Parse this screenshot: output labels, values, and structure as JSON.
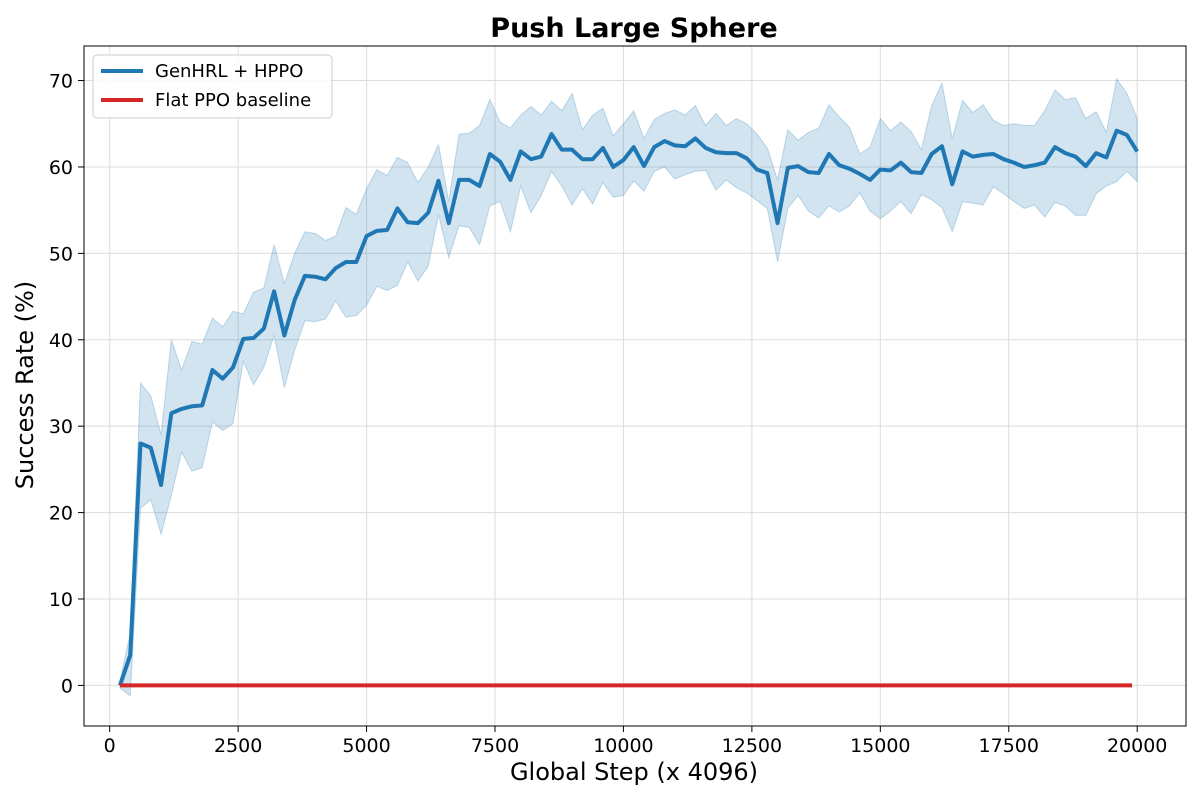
{
  "chart_data": {
    "type": "line",
    "title": "Push Large Sphere",
    "xlabel": "Global Step (x 4096)",
    "ylabel": "Success Rate (%)",
    "xlim": [
      -500,
      20950
    ],
    "ylim": [
      -4.7,
      74
    ],
    "x_ticks": [
      0,
      2500,
      5000,
      7500,
      10000,
      12500,
      15000,
      17500,
      20000
    ],
    "y_ticks": [
      0,
      10,
      20,
      30,
      40,
      50,
      60,
      70
    ],
    "grid": true,
    "legend": "top-left",
    "colors": {
      "series_main": "#1f77b4",
      "band": "#1f77b4",
      "baseline": "#d62728"
    },
    "series": [
      {
        "name": "GenHRL + HPPO",
        "color": "#1f77b4",
        "x": [
          200,
          400,
          600,
          800,
          1000,
          1200,
          1400,
          1600,
          1800,
          2000,
          2200,
          2400,
          2600,
          2800,
          3000,
          3200,
          3400,
          3600,
          3800,
          4000,
          4200,
          4400,
          4600,
          4800,
          5000,
          5200,
          5400,
          5600,
          5800,
          6000,
          6200,
          6400,
          6600,
          6800,
          7000,
          7200,
          7400,
          7600,
          7800,
          8000,
          8200,
          8400,
          8600,
          8800,
          9000,
          9200,
          9400,
          9600,
          9800,
          10000,
          10200,
          10400,
          10600,
          10800,
          11000,
          11200,
          11400,
          11600,
          11800,
          12000,
          12200,
          12400,
          12600,
          12800,
          13000,
          13200,
          13400,
          13600,
          13800,
          14000,
          14200,
          14400,
          14600,
          14800,
          15000,
          15200,
          15400,
          15600,
          15800,
          16000,
          16200,
          16400,
          16600,
          16800,
          17000,
          17200,
          17400,
          17600,
          17800,
          18000,
          18200,
          18400,
          18600,
          18800,
          19000,
          19200,
          19400,
          19600,
          19800,
          20000
        ],
        "y": [
          0,
          3.5,
          28,
          27.5,
          23.2,
          31.5,
          32,
          32.3,
          32.4,
          36.5,
          35.5,
          36.8,
          40.1,
          40.2,
          41.3,
          45.6,
          40.5,
          44.6,
          47.4,
          47.3,
          47,
          48.3,
          49,
          49,
          52,
          52.6,
          52.7,
          55.2,
          53.6,
          53.5,
          54.7,
          58.4,
          53.5,
          58.5,
          58.5,
          57.8,
          61.5,
          60.6,
          58.5,
          61.8,
          60.9,
          61.2,
          63.8,
          62,
          62,
          60.9,
          60.9,
          62.2,
          60,
          60.8,
          62.3,
          60.1,
          62.3,
          63,
          62.5,
          62.4,
          63.3,
          62.2,
          61.7,
          61.6,
          61.6,
          61,
          59.7,
          59.3,
          53.5,
          59.9,
          60.1,
          59.4,
          59.3,
          61.5,
          60.2,
          59.8,
          59.2,
          58.5,
          59.7,
          59.6,
          60.5,
          59.4,
          59.3,
          61.5,
          62.4,
          58,
          61.8,
          61.2,
          61.4,
          61.5,
          60.9,
          60.5,
          60,
          60.2,
          60.5,
          62.3,
          61.6,
          61.2,
          60.1,
          61.6,
          61.1,
          64.2,
          63.7,
          61.8
        ],
        "y_upper": [
          0.5,
          6,
          35,
          33.5,
          29,
          40,
          36.5,
          39.8,
          39.5,
          42.5,
          41.5,
          43.3,
          43,
          45.5,
          46,
          51,
          46.5,
          50,
          52.5,
          52.3,
          51.5,
          52,
          55.3,
          54.5,
          57.5,
          59.7,
          59,
          61.1,
          60.5,
          58.2,
          60,
          62.6,
          56,
          63.8,
          63.9,
          64.8,
          67.8,
          65.2,
          64.5,
          66,
          67,
          66,
          67.6,
          66.5,
          68.5,
          64.3,
          66,
          66.8,
          63.6,
          65,
          66.5,
          63.3,
          65.5,
          66.2,
          66.6,
          66,
          67.1,
          64.8,
          66.2,
          64.8,
          65.6,
          65,
          63.8,
          62.2,
          58.5,
          64.3,
          63.1,
          64,
          64.5,
          67.2,
          65.8,
          64.6,
          61.5,
          62.3,
          65.6,
          64.2,
          65.2,
          64.1,
          62,
          67.1,
          69.7,
          63.3,
          67.7,
          66.3,
          67.2,
          65.4,
          64.8,
          65,
          64.8,
          64.8,
          66.5,
          68.9,
          67.8,
          68,
          65.6,
          66.4,
          64,
          70.2,
          68.5,
          65.6
        ],
        "y_lower": [
          -0.3,
          -1.2,
          20.5,
          21.5,
          17.5,
          22,
          27,
          24.8,
          25.2,
          30.5,
          29.5,
          30.3,
          37.5,
          34.8,
          36.8,
          40.5,
          34.5,
          38.8,
          42.2,
          42.1,
          42.4,
          44.5,
          42.6,
          42.8,
          44,
          46.2,
          45.7,
          46.3,
          49,
          46.8,
          48.5,
          54.5,
          49.5,
          53.2,
          53,
          51,
          55.5,
          56,
          52.5,
          57.8,
          54.7,
          56.7,
          59.5,
          57.8,
          55.6,
          57.5,
          55.7,
          58.2,
          56.5,
          56.7,
          58.4,
          57.2,
          59.5,
          60,
          58.6,
          59.1,
          59.5,
          59.6,
          57.3,
          58.5,
          57.6,
          57,
          56.1,
          55.2,
          49,
          55.2,
          56.7,
          54.9,
          54.1,
          55.5,
          54.8,
          55.5,
          57,
          54.9,
          54,
          54.9,
          56,
          54.6,
          56.8,
          56.2,
          55.3,
          52.5,
          56,
          55.8,
          55.6,
          57.7,
          56.9,
          56,
          55.2,
          55.6,
          54.2,
          55.9,
          55.5,
          54.4,
          54.4,
          56.9,
          57.8,
          58.3,
          59.5,
          58.3
        ]
      },
      {
        "name": "Flat PPO baseline",
        "color": "#d62728",
        "x": [
          200,
          19900
        ],
        "y": [
          0,
          0
        ]
      }
    ]
  }
}
